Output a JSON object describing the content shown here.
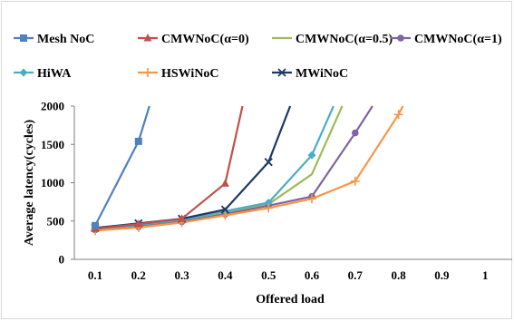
{
  "chart_data": {
    "type": "line",
    "title": "",
    "xlabel": "Offered load",
    "ylabel": "Average latency(cycles)",
    "x_ticks": [
      "0.1",
      "0.2",
      "0.3",
      "0.4",
      "0.5",
      "0.6",
      "0.7",
      "0.8",
      "0.9",
      "1"
    ],
    "y_ticks": [
      "0",
      "500",
      "1000",
      "1500",
      "2000"
    ],
    "xlim": [
      0.1,
      1
    ],
    "ylim": [
      0,
      2000
    ],
    "grid": false,
    "legend_position": "top",
    "series": [
      {
        "name": "Mesh NoC",
        "color": "#4f81bd",
        "marker": "square",
        "points": [
          [
            0.1,
            440
          ],
          [
            0.2,
            1540
          ],
          [
            0.225,
            2000
          ]
        ]
      },
      {
        "name": "CMWNoC(α=0)",
        "color": "#c0504d",
        "marker": "triangle",
        "points": [
          [
            0.1,
            400
          ],
          [
            0.2,
            460
          ],
          [
            0.3,
            530
          ],
          [
            0.4,
            990
          ],
          [
            0.44,
            2000
          ]
        ]
      },
      {
        "name": "CMWNoC(α=0.5)",
        "color": "#9bbb59",
        "marker": "none",
        "points": [
          [
            0.1,
            390
          ],
          [
            0.2,
            440
          ],
          [
            0.3,
            500
          ],
          [
            0.4,
            610
          ],
          [
            0.5,
            720
          ],
          [
            0.6,
            1110
          ],
          [
            0.67,
            2000
          ]
        ]
      },
      {
        "name": "CMWNoC(α=1)",
        "color": "#8064a2",
        "marker": "circle",
        "points": [
          [
            0.1,
            385
          ],
          [
            0.2,
            425
          ],
          [
            0.3,
            490
          ],
          [
            0.4,
            590
          ],
          [
            0.5,
            700
          ],
          [
            0.6,
            820
          ],
          [
            0.7,
            1650
          ],
          [
            0.74,
            2000
          ]
        ]
      },
      {
        "name": "HiWA",
        "color": "#4bacc6",
        "marker": "diamond",
        "points": [
          [
            0.1,
            395
          ],
          [
            0.2,
            450
          ],
          [
            0.3,
            515
          ],
          [
            0.4,
            630
          ],
          [
            0.5,
            740
          ],
          [
            0.6,
            1360
          ],
          [
            0.65,
            2000
          ]
        ]
      },
      {
        "name": "HSWiNoC",
        "color": "#f79646",
        "marker": "plus",
        "points": [
          [
            0.1,
            375
          ],
          [
            0.2,
            415
          ],
          [
            0.3,
            480
          ],
          [
            0.4,
            575
          ],
          [
            0.5,
            670
          ],
          [
            0.6,
            790
          ],
          [
            0.7,
            1020
          ],
          [
            0.8,
            1890
          ],
          [
            0.81,
            2000
          ]
        ]
      },
      {
        "name": "MWiNoC",
        "color": "#1f3864",
        "marker": "x",
        "points": [
          [
            0.1,
            410
          ],
          [
            0.2,
            470
          ],
          [
            0.3,
            530
          ],
          [
            0.4,
            650
          ],
          [
            0.5,
            1270
          ],
          [
            0.55,
            2000
          ]
        ]
      }
    ]
  }
}
